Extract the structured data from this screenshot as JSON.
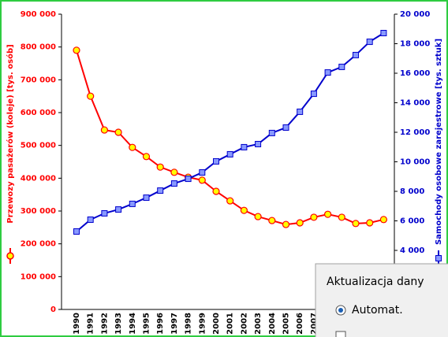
{
  "chart_data": {
    "type": "line",
    "y_label": "Przewozy pasażerów (koleje) [tys. osób]",
    "y2_label": "Samochody osobowe zarejestrowe [tys. sztuk]",
    "categories": [
      "1990",
      "1991",
      "1992",
      "1993",
      "1994",
      "1995",
      "1996",
      "1997",
      "1998",
      "1999",
      "2000",
      "2001",
      "2002",
      "2003",
      "2004",
      "2005",
      "2006",
      "2007",
      null,
      null,
      null,
      null,
      null
    ],
    "series": [
      {
        "color": "#ff0000",
        "marker": "circle",
        "values": [
          790000,
          650000,
          547000,
          540000,
          494000,
          466000,
          434000,
          418000,
          403000,
          394000,
          360000,
          331000,
          302000,
          283000,
          271000,
          259000,
          264000,
          281000,
          290000,
          281000,
          262000,
          264000,
          274000
        ]
      },
      {
        "color": "#0000cc",
        "marker": "square",
        "axis": "y2",
        "values": [
          5280,
          6080,
          6510,
          6770,
          7150,
          7570,
          8050,
          8530,
          8850,
          9280,
          10030,
          10510,
          10990,
          11200,
          11950,
          12320,
          13390,
          14610,
          16050,
          16430,
          17230,
          18130,
          18720
        ]
      }
    ],
    "ylim": [
      0,
      900000
    ],
    "yticks": [
      0,
      {
        "value": 100000,
        "label": "100 000"
      },
      {
        "value": 200000,
        "label": "200 000"
      },
      {
        "value": 300000,
        "label": "300 000"
      },
      {
        "value": 400000,
        "label": "400 000"
      },
      {
        "value": 500000,
        "label": "500 000"
      },
      {
        "value": 600000,
        "label": "600 000"
      },
      {
        "value": 700000,
        "label": "700 000"
      },
      {
        "value": 800000,
        "label": "800 000"
      },
      {
        "value": 900000,
        "label": "900 000"
      }
    ],
    "y2lim": [
      0,
      20000
    ],
    "y2ticks": [
      {
        "value": 4000,
        "label": "4 000"
      },
      {
        "value": 6000,
        "label": "6 000"
      },
      {
        "value": 8000,
        "label": "8 000"
      },
      {
        "value": 10000,
        "label": "10 000"
      },
      {
        "value": 12000,
        "label": "12 000"
      },
      {
        "value": 14000,
        "label": "14 000"
      },
      {
        "value": 16000,
        "label": "16 000"
      },
      {
        "value": 18000,
        "label": "18 000"
      },
      {
        "value": 20000,
        "label": "20 000"
      }
    ],
    "grid": false
  },
  "dialog": {
    "title": "Aktualizacja dany",
    "radio": "Automat."
  }
}
